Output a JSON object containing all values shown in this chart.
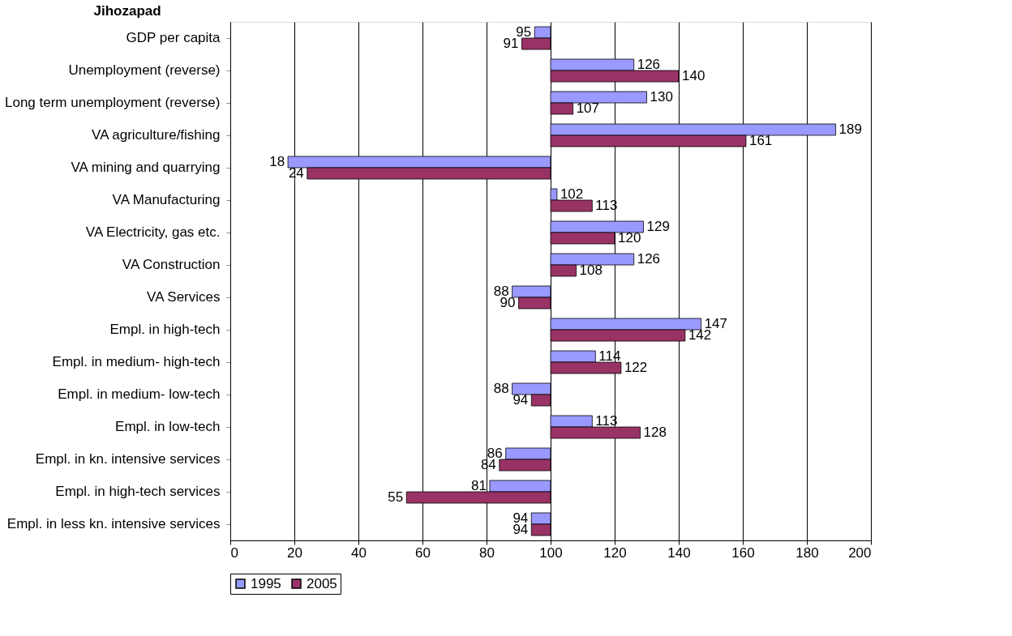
{
  "chart_data": {
    "type": "bar",
    "title": "Jihozapad",
    "orientation": "horizontal",
    "categories": [
      "GDP per capita",
      "Unemployment (reverse)",
      "Long term unemployment (reverse)",
      "VA agriculture/fishing",
      "VA mining and quarrying",
      "VA Manufacturing",
      "VA Electricity, gas etc.",
      "VA Construction",
      "VA Services",
      "Empl. in high-tech",
      "Empl. in medium- high-tech",
      "Empl. in medium- low-tech",
      "Empl. in low-tech",
      "Empl. in kn. intensive services",
      "Empl. in high-tech services",
      "Empl. in less kn. intensive services"
    ],
    "series": [
      {
        "name": "1995",
        "color": "#9999ff",
        "base": [
          100,
          100,
          100,
          100,
          100,
          100,
          100,
          100,
          100,
          100,
          100,
          100,
          100,
          100,
          100,
          100
        ],
        "values": [
          -5,
          26,
          30,
          89,
          -82,
          2,
          29,
          26,
          -12,
          47,
          14,
          -12,
          13,
          -14,
          -19,
          -6
        ],
        "value_labels": [
          "95",
          "126",
          "130",
          "189",
          "18",
          "102",
          "129",
          "126",
          "88",
          "147",
          "114",
          "88",
          "113",
          "86",
          "81",
          "94"
        ]
      },
      {
        "name": "2005",
        "color": "#993366",
        "base": [
          100,
          100,
          100,
          100,
          100,
          100,
          100,
          100,
          100,
          100,
          100,
          100,
          100,
          100,
          100,
          100
        ],
        "values": [
          -9,
          40,
          7,
          61,
          -76,
          13,
          20,
          8,
          -10,
          42,
          22,
          -6,
          28,
          -16,
          -45,
          -6
        ],
        "value_labels": [
          "91",
          "140",
          "107",
          "161",
          "24",
          "113",
          "120",
          "108",
          "90",
          "142",
          "122",
          "94",
          "128",
          "84",
          "55",
          "94"
        ]
      }
    ],
    "xlim": [
      0,
      200
    ],
    "xticks": [
      0,
      20,
      40,
      60,
      80,
      100,
      120,
      140,
      160,
      180,
      200
    ],
    "grid": "x",
    "legend": "bottom"
  }
}
